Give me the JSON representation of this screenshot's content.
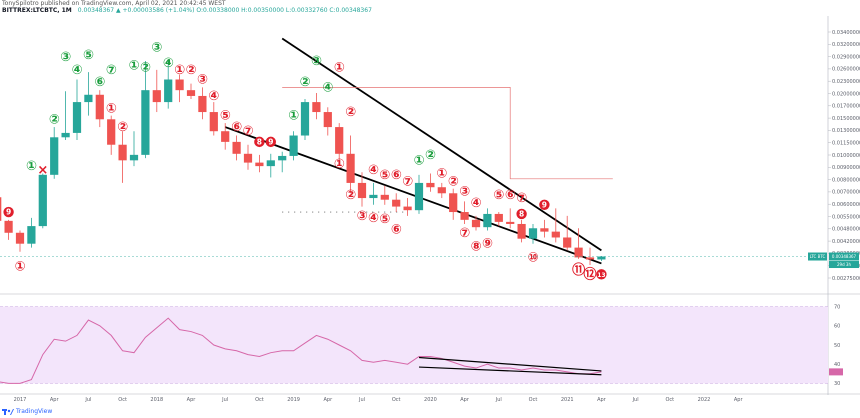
{
  "header": {
    "author_line": "TonySpilotro published on TradingView.com, April 02, 2021 20:42:45 WEST",
    "symbol_line": "BITTREX:LTCBTC, 1M",
    "ohlc": "0.00348367 ▲ +0.00003586 (+1.04%) O:0.00338000 H:0.00350000 L:0.00332760 C:0.00348367"
  },
  "footer": {
    "brand": "TradingView"
  },
  "colors": {
    "up": "#26a69a",
    "down": "#ef5350",
    "td_buy": "#1b9e3e",
    "td_sell": "#e01e2b",
    "rsi_line": "#d667a8",
    "rsi_band": "#f3e5fb",
    "trendline": "#000000"
  },
  "chart_data": [
    {
      "type": "candlestick",
      "symbol": "BITTREX:LTCBTC",
      "interval": "1M",
      "x_tick_labels": [
        "2017",
        "Apr",
        "Jul",
        "Oct",
        "2018",
        "Apr",
        "Jul",
        "Oct",
        "2019",
        "Apr",
        "Jul",
        "Oct",
        "2020",
        "Apr",
        "Jul",
        "Oct",
        "2021",
        "Apr",
        "Jul",
        "Oct",
        "2022",
        "Apr"
      ],
      "y_tick_labels": [
        "0.03400000",
        "0.03200000",
        "0.02900000",
        "0.02600000",
        "0.02300000",
        "0.02000000",
        "0.01700000",
        "0.01500000",
        "0.01300000",
        "0.01150000",
        "0.01000000",
        "0.00900000",
        "0.00800000",
        "0.00700000",
        "0.00600000",
        "0.00550000",
        "0.00480000",
        "0.00420000",
        "0.00380000",
        "0.00330000",
        "0.00275000"
      ],
      "last_price_label": "0.00348367",
      "last_time_label": "29d 3h",
      "series_tag": "LTC BTC",
      "candles": [
        {
          "date": "2016-09",
          "o": 0.0071,
          "h": 0.0076,
          "l": 0.0064,
          "c": 0.0069
        },
        {
          "date": "2016-10",
          "o": 0.0069,
          "h": 0.00705,
          "l": 0.006,
          "c": 0.00625
        },
        {
          "date": "2016-11",
          "o": 0.00625,
          "h": 0.0064,
          "l": 0.0047,
          "c": 0.00495
        },
        {
          "date": "2016-12",
          "o": 0.00495,
          "h": 0.005,
          "l": 0.0041,
          "c": 0.0044
        },
        {
          "date": "2017-01",
          "o": 0.0044,
          "h": 0.0045,
          "l": 0.00365,
          "c": 0.00395
        },
        {
          "date": "2017-02",
          "o": 0.00395,
          "h": 0.0051,
          "l": 0.0038,
          "c": 0.0047
        },
        {
          "date": "2017-03",
          "o": 0.0047,
          "h": 0.0079,
          "l": 0.0046,
          "c": 0.0078
        },
        {
          "date": "2017-04",
          "o": 0.0078,
          "h": 0.0125,
          "l": 0.0075,
          "c": 0.0113
        },
        {
          "date": "2017-05",
          "o": 0.0113,
          "h": 0.0178,
          "l": 0.011,
          "c": 0.0118
        },
        {
          "date": "2017-06",
          "o": 0.0118,
          "h": 0.02,
          "l": 0.011,
          "c": 0.016
        },
        {
          "date": "2017-07",
          "o": 0.016,
          "h": 0.0215,
          "l": 0.014,
          "c": 0.0172
        },
        {
          "date": "2017-08",
          "o": 0.0172,
          "h": 0.018,
          "l": 0.0125,
          "c": 0.0135
        },
        {
          "date": "2017-09",
          "o": 0.0135,
          "h": 0.014,
          "l": 0.0095,
          "c": 0.0105
        },
        {
          "date": "2017-10",
          "o": 0.0105,
          "h": 0.012,
          "l": 0.0072,
          "c": 0.009
        },
        {
          "date": "2017-11",
          "o": 0.009,
          "h": 0.012,
          "l": 0.0085,
          "c": 0.0095
        },
        {
          "date": "2017-12",
          "o": 0.0095,
          "h": 0.024,
          "l": 0.0092,
          "c": 0.018
        },
        {
          "date": "2018-01",
          "o": 0.018,
          "h": 0.022,
          "l": 0.0145,
          "c": 0.016
        },
        {
          "date": "2018-02",
          "o": 0.016,
          "h": 0.024,
          "l": 0.015,
          "c": 0.02
        },
        {
          "date": "2018-03",
          "o": 0.02,
          "h": 0.021,
          "l": 0.016,
          "c": 0.018
        },
        {
          "date": "2018-04",
          "o": 0.018,
          "h": 0.0192,
          "l": 0.0165,
          "c": 0.017
        },
        {
          "date": "2018-05",
          "o": 0.017,
          "h": 0.0185,
          "l": 0.0135,
          "c": 0.0145
        },
        {
          "date": "2018-06",
          "o": 0.0145,
          "h": 0.016,
          "l": 0.0115,
          "c": 0.012
        },
        {
          "date": "2018-07",
          "o": 0.012,
          "h": 0.013,
          "l": 0.01,
          "c": 0.0108
        },
        {
          "date": "2018-08",
          "o": 0.0108,
          "h": 0.0115,
          "l": 0.009,
          "c": 0.0096
        },
        {
          "date": "2018-09",
          "o": 0.0096,
          "h": 0.0105,
          "l": 0.0082,
          "c": 0.0088
        },
        {
          "date": "2018-10",
          "o": 0.0088,
          "h": 0.0095,
          "l": 0.008,
          "c": 0.0085
        },
        {
          "date": "2018-11",
          "o": 0.0085,
          "h": 0.0096,
          "l": 0.0076,
          "c": 0.009
        },
        {
          "date": "2018-12",
          "o": 0.009,
          "h": 0.0098,
          "l": 0.008,
          "c": 0.0094
        },
        {
          "date": "2019-01",
          "o": 0.0094,
          "h": 0.012,
          "l": 0.009,
          "c": 0.0115
        },
        {
          "date": "2019-02",
          "o": 0.0115,
          "h": 0.0165,
          "l": 0.011,
          "c": 0.016
        },
        {
          "date": "2019-03",
          "o": 0.016,
          "h": 0.0175,
          "l": 0.0135,
          "c": 0.0145
        },
        {
          "date": "2019-04",
          "o": 0.0145,
          "h": 0.0152,
          "l": 0.0115,
          "c": 0.0125
        },
        {
          "date": "2019-05",
          "o": 0.0125,
          "h": 0.013,
          "l": 0.009,
          "c": 0.0096
        },
        {
          "date": "2019-06",
          "o": 0.0096,
          "h": 0.0115,
          "l": 0.0065,
          "c": 0.0072
        },
        {
          "date": "2019-07",
          "o": 0.0072,
          "h": 0.008,
          "l": 0.0057,
          "c": 0.0062
        },
        {
          "date": "2019-08",
          "o": 0.0062,
          "h": 0.0072,
          "l": 0.0058,
          "c": 0.0064
        },
        {
          "date": "2019-09",
          "o": 0.0064,
          "h": 0.007,
          "l": 0.0058,
          "c": 0.0061
        },
        {
          "date": "2019-10",
          "o": 0.0061,
          "h": 0.0065,
          "l": 0.0054,
          "c": 0.0057
        },
        {
          "date": "2019-11",
          "o": 0.0057,
          "h": 0.0062,
          "l": 0.0052,
          "c": 0.0055
        },
        {
          "date": "2019-12",
          "o": 0.0055,
          "h": 0.0078,
          "l": 0.0053,
          "c": 0.0072
        },
        {
          "date": "2020-01",
          "o": 0.0072,
          "h": 0.0079,
          "l": 0.0066,
          "c": 0.0069
        },
        {
          "date": "2020-02",
          "o": 0.0069,
          "h": 0.0072,
          "l": 0.0062,
          "c": 0.0065
        },
        {
          "date": "2020-03",
          "o": 0.0065,
          "h": 0.0068,
          "l": 0.005,
          "c": 0.0054
        },
        {
          "date": "2020-04",
          "o": 0.0054,
          "h": 0.006,
          "l": 0.0048,
          "c": 0.005
        },
        {
          "date": "2020-05",
          "o": 0.005,
          "h": 0.0052,
          "l": 0.0045,
          "c": 0.00465
        },
        {
          "date": "2020-06",
          "o": 0.00465,
          "h": 0.0056,
          "l": 0.0045,
          "c": 0.0053
        },
        {
          "date": "2020-07",
          "o": 0.0053,
          "h": 0.0054,
          "l": 0.0047,
          "c": 0.0049
        },
        {
          "date": "2020-08",
          "o": 0.0049,
          "h": 0.0056,
          "l": 0.0046,
          "c": 0.0048
        },
        {
          "date": "2020-09",
          "o": 0.0048,
          "h": 0.005,
          "l": 0.004,
          "c": 0.00415
        },
        {
          "date": "2020-10",
          "o": 0.00415,
          "h": 0.0048,
          "l": 0.00395,
          "c": 0.0046
        },
        {
          "date": "2020-11",
          "o": 0.0046,
          "h": 0.005,
          "l": 0.0042,
          "c": 0.00445
        },
        {
          "date": "2020-12",
          "o": 0.00445,
          "h": 0.0056,
          "l": 0.004,
          "c": 0.0042
        },
        {
          "date": "2021-01",
          "o": 0.0042,
          "h": 0.0052,
          "l": 0.0037,
          "c": 0.0038
        },
        {
          "date": "2021-02",
          "o": 0.0038,
          "h": 0.0046,
          "l": 0.0034,
          "c": 0.00345
        },
        {
          "date": "2021-03",
          "o": 0.00345,
          "h": 0.0038,
          "l": 0.0032,
          "c": 0.00338
        },
        {
          "date": "2021-04",
          "o": 0.00338,
          "h": 0.0035,
          "l": 0.00333,
          "c": 0.00348
        }
      ]
    },
    {
      "type": "line",
      "name": "RSI",
      "y_tick_labels": [
        "70",
        "60",
        "50",
        "40",
        "30"
      ],
      "ylim": [
        25,
        75
      ],
      "band": [
        30,
        70
      ],
      "values": [
        33,
        32,
        31,
        30,
        30,
        32,
        45,
        53,
        52,
        55,
        63,
        60,
        55,
        47,
        46,
        54,
        59,
        64,
        58,
        57,
        55,
        50,
        48,
        47,
        45,
        44,
        46,
        47,
        47,
        51,
        55,
        53,
        50,
        47,
        42,
        41,
        42,
        41,
        40,
        44,
        44,
        43,
        41,
        39,
        38,
        40,
        38,
        38,
        37,
        38,
        37,
        37,
        36,
        35,
        35,
        36
      ]
    }
  ],
  "annotations": {
    "td_labels": [
      {
        "text": "⑦",
        "color": "red",
        "date": "2016-09",
        "price": 0.0079
      },
      {
        "text": "8",
        "color": "red",
        "date": "2016-10",
        "price": 0.0076,
        "filled": true
      },
      {
        "text": "9",
        "color": "red",
        "date": "2016-12",
        "price": 0.0054,
        "filled": true
      },
      {
        "text": "①",
        "color": "red",
        "date": "2017-01",
        "price": 0.00315
      },
      {
        "text": "①",
        "color": "green",
        "date": "2017-02",
        "price": 0.0085
      },
      {
        "text": "×",
        "color": "red",
        "date": "2017-03",
        "price": 0.0082
      },
      {
        "text": "②",
        "color": "green",
        "date": "2017-04",
        "price": 0.0135
      },
      {
        "text": "③",
        "color": "green",
        "date": "2017-05",
        "price": 0.025
      },
      {
        "text": "④",
        "color": "green",
        "date": "2017-06",
        "price": 0.022
      },
      {
        "text": "⑤",
        "color": "green",
        "date": "2017-07",
        "price": 0.0255
      },
      {
        "text": "⑥",
        "color": "green",
        "date": "2017-08",
        "price": 0.0195
      },
      {
        "text": "⑦",
        "color": "green",
        "date": "2017-09",
        "price": 0.022
      },
      {
        "text": "①",
        "color": "red",
        "date": "2017-09",
        "price": 0.015
      },
      {
        "text": "②",
        "color": "red",
        "date": "2017-10",
        "price": 0.0125
      },
      {
        "text": "①",
        "color": "green",
        "date": "2017-11",
        "price": 0.023
      },
      {
        "text": "②",
        "color": "green",
        "date": "2017-12",
        "price": 0.0225
      },
      {
        "text": "③",
        "color": "green",
        "date": "2018-01",
        "price": 0.0275
      },
      {
        "text": "④",
        "color": "green",
        "date": "2018-02",
        "price": 0.0235
      },
      {
        "text": "①",
        "color": "red",
        "date": "2018-03",
        "price": 0.022
      },
      {
        "text": "②",
        "color": "red",
        "date": "2018-04",
        "price": 0.022
      },
      {
        "text": "③",
        "color": "red",
        "date": "2018-05",
        "price": 0.02
      },
      {
        "text": "④",
        "color": "red",
        "date": "2018-06",
        "price": 0.017
      },
      {
        "text": "⑤",
        "color": "red",
        "date": "2018-07",
        "price": 0.014
      },
      {
        "text": "⑥",
        "color": "red",
        "date": "2018-08",
        "price": 0.0125
      },
      {
        "text": "⑦",
        "color": "red",
        "date": "2018-09",
        "price": 0.012
      },
      {
        "text": "8",
        "color": "red",
        "date": "2018-10",
        "price": 0.0108,
        "filled": true
      },
      {
        "text": "9",
        "color": "red",
        "date": "2018-11",
        "price": 0.0108,
        "filled": true
      },
      {
        "text": "①",
        "color": "green",
        "date": "2019-01",
        "price": 0.014
      },
      {
        "text": "②",
        "color": "green",
        "date": "2019-02",
        "price": 0.0195
      },
      {
        "text": "③",
        "color": "green",
        "date": "2019-03",
        "price": 0.024
      },
      {
        "text": "④",
        "color": "green",
        "date": "2019-04",
        "price": 0.0185
      },
      {
        "text": "①",
        "color": "red",
        "date": "2019-05",
        "price": 0.0225
      },
      {
        "text": "②",
        "color": "red",
        "date": "2019-06",
        "price": 0.0145
      },
      {
        "text": "①",
        "color": "red",
        "date": "2019-05",
        "price": 0.0087
      },
      {
        "text": "②",
        "color": "red",
        "date": "2019-06",
        "price": 0.0064
      },
      {
        "text": "③",
        "color": "red",
        "date": "2019-07",
        "price": 0.0052
      },
      {
        "text": "④",
        "color": "red",
        "date": "2019-08",
        "price": 0.0082
      },
      {
        "text": "④",
        "color": "red",
        "date": "2019-08",
        "price": 0.0051
      },
      {
        "text": "⑤",
        "color": "red",
        "date": "2019-09",
        "price": 0.0078
      },
      {
        "text": "⑤",
        "color": "red",
        "date": "2019-09",
        "price": 0.00505
      },
      {
        "text": "⑥",
        "color": "red",
        "date": "2019-10",
        "price": 0.0078
      },
      {
        "text": "⑥",
        "color": "red",
        "date": "2019-10",
        "price": 0.00455
      },
      {
        "text": "⑦",
        "color": "red",
        "date": "2019-11",
        "price": 0.0073
      },
      {
        "text": "①",
        "color": "green",
        "date": "2019-12",
        "price": 0.009
      },
      {
        "text": "②",
        "color": "green",
        "date": "2020-01",
        "price": 0.0095
      },
      {
        "text": "①",
        "color": "red",
        "date": "2020-02",
        "price": 0.0079
      },
      {
        "text": "②",
        "color": "red",
        "date": "2020-03",
        "price": 0.0073
      },
      {
        "text": "③",
        "color": "red",
        "date": "2020-04",
        "price": 0.0066
      },
      {
        "text": "④",
        "color": "red",
        "date": "2020-05",
        "price": 0.0059
      },
      {
        "text": "⑦",
        "color": "red",
        "date": "2020-04",
        "price": 0.0044
      },
      {
        "text": "⑧",
        "color": "red",
        "date": "2020-05",
        "price": 0.00385
      },
      {
        "text": "⑨",
        "color": "red",
        "date": "2020-06",
        "price": 0.00395
      },
      {
        "text": "⑤",
        "color": "red",
        "date": "2020-07",
        "price": 0.0064
      },
      {
        "text": "⑥",
        "color": "red",
        "date": "2020-08",
        "price": 0.0064
      },
      {
        "text": "⑦",
        "color": "red",
        "date": "2020-09",
        "price": 0.0062
      },
      {
        "text": "8",
        "color": "red",
        "date": "2020-09",
        "price": 0.0053,
        "filled": true
      },
      {
        "text": "9",
        "color": "red",
        "date": "2020-11",
        "price": 0.0058,
        "filled": true
      },
      {
        "text": "⑩",
        "color": "red",
        "date": "2020-10",
        "price": 0.00345
      },
      {
        "text": "⑪",
        "color": "red",
        "date": "2021-02",
        "price": 0.00305
      },
      {
        "text": "⑫",
        "color": "red",
        "date": "2021-03",
        "price": 0.00292
      },
      {
        "text": "13",
        "color": "red",
        "date": "2021-04",
        "price": 0.00292,
        "filled": true
      }
    ],
    "trendlines_price": [
      {
        "start_date": "2018-07",
        "start_price": 0.0125,
        "end_date": "2021-04",
        "end_price": 0.00325
      },
      {
        "start_date": "2018-12",
        "start_price": 0.03,
        "end_date": "2021-04",
        "end_price": 0.0037
      }
    ],
    "trendlines_rsi": [
      {
        "start_date": "2019-12",
        "start_value": 43.5,
        "end_date": "2021-04",
        "end_value": 36.5
      },
      {
        "start_date": "2019-12",
        "start_value": 38.5,
        "end_date": "2021-04",
        "end_value": 34.5
      }
    ],
    "resistance_step": [
      {
        "date": "2018-12",
        "price": 0.0185
      },
      {
        "date": "2020-08",
        "price": 0.0185
      },
      {
        "date": "2020-08",
        "price": 0.0075
      },
      {
        "date": "2021-05",
        "price": 0.0075
      }
    ],
    "dotted_level": {
      "start_date": "2018-12",
      "end_date": "2019-11",
      "price": 0.0054
    }
  }
}
